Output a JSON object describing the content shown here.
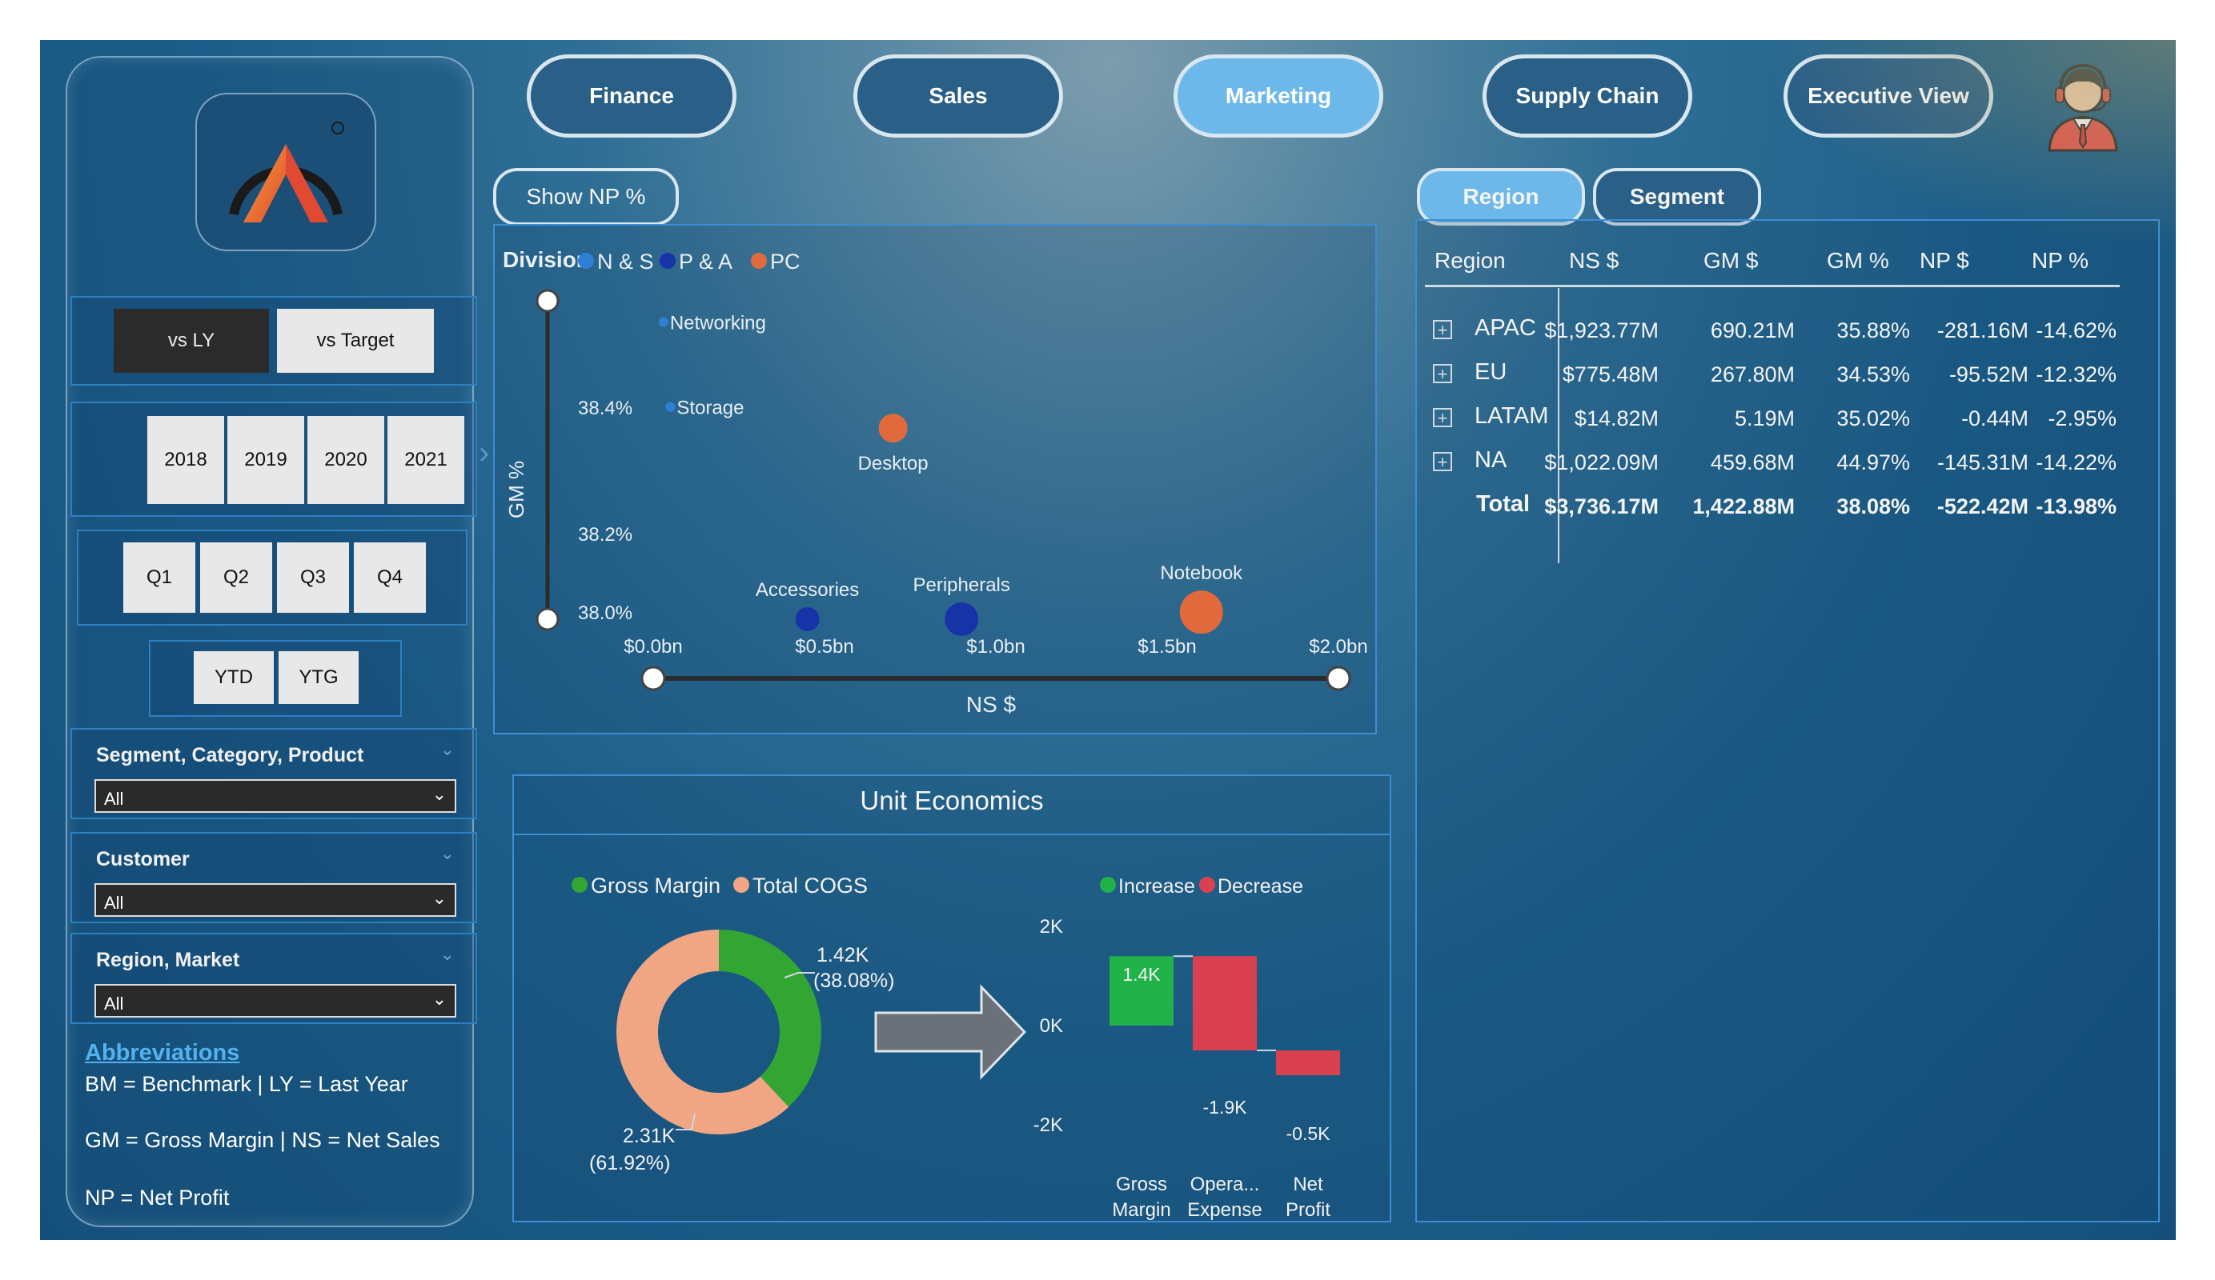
{
  "nav": {
    "tabs": [
      {
        "label": "Finance",
        "active": false
      },
      {
        "label": "Sales",
        "active": false
      },
      {
        "label": "Marketing",
        "active": true
      },
      {
        "label": "Supply Chain",
        "active": false
      },
      {
        "label": "Executive View",
        "active": false
      }
    ]
  },
  "sidebar": {
    "compare": {
      "vs_ly": "vs LY",
      "vs_target": "vs Target",
      "selected": "vs LY"
    },
    "years": [
      "2018",
      "2019",
      "2020",
      "2021"
    ],
    "quarters": [
      "Q1",
      "Q2",
      "Q3",
      "Q4"
    ],
    "period": [
      "YTD",
      "YTG"
    ],
    "filters": [
      {
        "title": "Segment, Category, Product",
        "value": "All"
      },
      {
        "title": "Customer",
        "value": "All"
      },
      {
        "title": "Region, Market",
        "value": "All"
      }
    ],
    "abbreviations": {
      "title": "Abbreviations",
      "lines": [
        "BM = Benchmark | LY = Last Year",
        "GM = Gross Margin | NS = Net Sales",
        "NP = Net Profit"
      ]
    }
  },
  "show_np_button": "Show NP %",
  "scatter": {
    "legend_title": "Division",
    "legend": [
      {
        "name": "N & S",
        "color": "#2f7fd6"
      },
      {
        "name": "P & A",
        "color": "#1733a8"
      },
      {
        "name": "PC",
        "color": "#e06a3c"
      }
    ],
    "ylabel": "GM %",
    "xlabel": "NS $",
    "y_ticks": [
      "38.4%",
      "38.2%",
      "38.0%"
    ],
    "x_ticks": [
      "$0.0bn",
      "$0.5bn",
      "$1.0bn",
      "$1.5bn",
      "$2.0bn"
    ]
  },
  "table_tabs": [
    {
      "label": "Region",
      "active": true
    },
    {
      "label": "Segment",
      "active": false
    }
  ],
  "region_table": {
    "headers": [
      "Region",
      "NS $",
      "GM $",
      "GM %",
      "NP $",
      "NP %"
    ],
    "rows": [
      [
        "APAC",
        "$1,923.77M",
        "690.21M",
        "35.88%",
        "-281.16M",
        "-14.62%"
      ],
      [
        "EU",
        "$775.48M",
        "267.80M",
        "34.53%",
        "-95.52M",
        "-12.32%"
      ],
      [
        "LATAM",
        "$14.82M",
        "5.19M",
        "35.02%",
        "-0.44M",
        "-2.95%"
      ],
      [
        "NA",
        "$1,022.09M",
        "459.68M",
        "44.97%",
        "-145.31M",
        "-14.22%"
      ]
    ],
    "total": [
      "Total",
      "$3,736.17M",
      "1,422.88M",
      "38.08%",
      "-522.42M",
      "-13.98%"
    ]
  },
  "unit_economics": {
    "title": "Unit Economics",
    "donut_legend": [
      {
        "name": "Gross Margin",
        "color": "#33a532"
      },
      {
        "name": "Total COGS",
        "color": "#f0a583"
      }
    ],
    "donut_labels": {
      "gm_value": "1.42K",
      "gm_pct": "(38.08%)",
      "cogs_value": "2.31K",
      "cogs_pct": "(61.92%)"
    },
    "waterfall_legend": [
      {
        "name": "Increase",
        "color": "#21b24a"
      },
      {
        "name": "Decrease",
        "color": "#d94150"
      }
    ],
    "waterfall_ticks": [
      "2K",
      "0K",
      "-2K"
    ],
    "waterfall_labels": {
      "gm": "1.4K",
      "opex": "-1.9K",
      "np": "-0.5K",
      "cat_gm_1": "Gross",
      "cat_gm_2": "Margin",
      "cat_opex_1": "Opera...",
      "cat_opex_2": "Expense",
      "cat_np_1": "Net",
      "cat_np_2": "Profit"
    }
  },
  "chart_data": [
    {
      "type": "scatter",
      "title": "",
      "xlabel": "NS $",
      "ylabel": "GM %",
      "xlim": [
        0,
        2.0
      ],
      "ylim": [
        38.0,
        38.45
      ],
      "legend_title": "Division",
      "series": [
        {
          "name": "N & S",
          "points": [
            {
              "label": "Networking",
              "x": 0.03,
              "y": 38.42,
              "size": 2
            },
            {
              "label": "Storage",
              "x": 0.05,
              "y": 38.3,
              "size": 2
            }
          ]
        },
        {
          "name": "P & A",
          "points": [
            {
              "label": "Accessories",
              "x": 0.45,
              "y": 38.0,
              "size": 5
            },
            {
              "label": "Peripherals",
              "x": 0.9,
              "y": 38.0,
              "size": 7
            }
          ]
        },
        {
          "name": "PC",
          "points": [
            {
              "label": "Desktop",
              "x": 0.7,
              "y": 38.27,
              "size": 6
            },
            {
              "label": "Notebook",
              "x": 1.6,
              "y": 38.01,
              "size": 9
            }
          ]
        }
      ]
    },
    {
      "type": "pie",
      "title": "",
      "categories": [
        "Gross Margin",
        "Total COGS"
      ],
      "values": [
        1.42,
        2.31
      ],
      "percentages": [
        38.08,
        61.92
      ],
      "colors": [
        "#33a532",
        "#f0a583"
      ]
    },
    {
      "type": "bar",
      "subtype": "waterfall",
      "title": "",
      "categories": [
        "Gross Margin",
        "Operating Expense",
        "Net Profit"
      ],
      "values": [
        1.4,
        -1.9,
        -0.5
      ],
      "ylim": [
        -2,
        2
      ],
      "legend": [
        "Increase",
        "Decrease"
      ]
    }
  ]
}
